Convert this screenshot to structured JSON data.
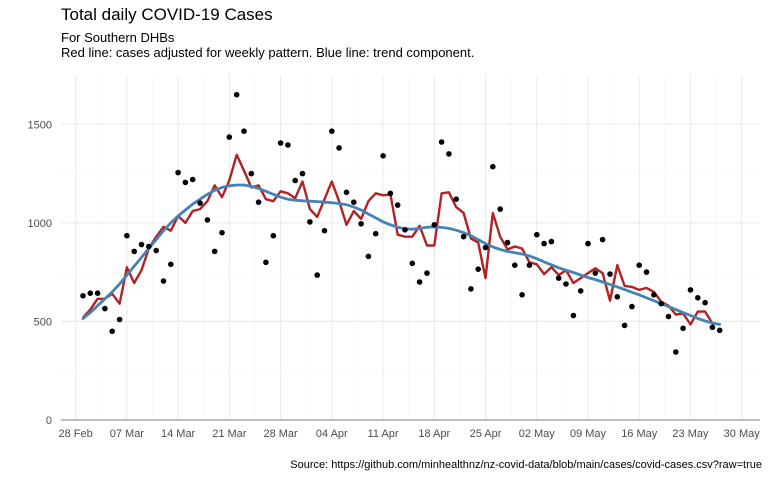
{
  "chart_data": {
    "type": "scatter",
    "title": "Total daily COVID-19 Cases",
    "subtitle_lines": [
      "For Southern DHBs",
      "Red line: cases adjusted for weekly pattern. Blue line: trend component."
    ],
    "caption": "Source: https://github.com/minhealthnz/nz-covid-data/blob/main/cases/covid-cases.csv?raw=true",
    "xlabel": "",
    "ylabel": "",
    "x_range_days": [
      -2,
      93.5
    ],
    "ylim": [
      0,
      1750
    ],
    "y_ticks": [
      0,
      500,
      1000,
      1500
    ],
    "x_ticks": [
      {
        "day": 0,
        "label": "28 Feb"
      },
      {
        "day": 7,
        "label": "07 Mar"
      },
      {
        "day": 14,
        "label": "14 Mar"
      },
      {
        "day": 21,
        "label": "21 Mar"
      },
      {
        "day": 28,
        "label": "28 Mar"
      },
      {
        "day": 35,
        "label": "04 Apr"
      },
      {
        "day": 42,
        "label": "11 Apr"
      },
      {
        "day": 49,
        "label": "18 Apr"
      },
      {
        "day": 56,
        "label": "25 Apr"
      },
      {
        "day": 63,
        "label": "02 May"
      },
      {
        "day": 70,
        "label": "09 May"
      },
      {
        "day": 77,
        "label": "16 May"
      },
      {
        "day": 84,
        "label": "23 May"
      },
      {
        "day": 91,
        "label": "30 May"
      }
    ],
    "grid": true,
    "legend": "none",
    "colors": {
      "points": "#000000",
      "adjusted": "#b22222",
      "trend": "#4682b4",
      "grid": "#ebebeb",
      "zero_line": "#7f7f7f"
    },
    "series": [
      {
        "kind": "points",
        "start_day": 1,
        "values": [
          630,
          643,
          643,
          565,
          450,
          510,
          935,
          855,
          890,
          880,
          860,
          705,
          790,
          1255,
          1205,
          1220,
          1100,
          1015,
          855,
          950,
          1435,
          1650,
          1465,
          1250,
          1105,
          800,
          935,
          1405,
          1395,
          1215,
          1250,
          1005,
          735,
          960,
          1465,
          1380,
          1155,
          1105,
          995,
          830,
          945,
          1340,
          1150,
          1090,
          965,
          795,
          700,
          745,
          990,
          1410,
          1350,
          1120,
          930,
          665,
          765,
          875,
          1285,
          1070,
          900,
          785,
          635,
          785,
          940,
          895,
          905,
          720,
          690,
          530,
          655,
          895,
          745,
          915,
          740,
          625,
          480,
          575,
          785,
          750,
          635,
          590,
          525,
          345,
          465,
          660,
          620,
          595,
          470,
          455
        ]
      },
      {
        "kind": "line",
        "start_day": 1,
        "values": [
          520,
          560,
          615,
          615,
          640,
          590,
          775,
          695,
          760,
          870,
          930,
          980,
          960,
          1035,
          1000,
          1060,
          1070,
          1110,
          1190,
          1130,
          1215,
          1345,
          1265,
          1180,
          1190,
          1120,
          1110,
          1160,
          1150,
          1125,
          1210,
          1070,
          1030,
          1120,
          1210,
          1110,
          990,
          1060,
          1020,
          1110,
          1150,
          1140,
          1145,
          940,
          930,
          930,
          985,
          885,
          885,
          1150,
          1155,
          1080,
          1050,
          920,
          900,
          720,
          1050,
          930,
          865,
          880,
          870,
          800,
          790,
          740,
          775,
          735,
          760,
          695,
          720,
          745,
          770,
          745,
          605,
          785,
          680,
          675,
          660,
          670,
          650,
          600,
          580,
          535,
          540,
          485,
          550,
          550,
          490,
          485
        ]
      },
      {
        "kind": "line",
        "start_day": 1,
        "values": [
          515,
          545,
          580,
          615,
          650,
          690,
          735,
          780,
          825,
          870,
          915,
          960,
          1000,
          1035,
          1065,
          1095,
          1120,
          1145,
          1165,
          1180,
          1188,
          1192,
          1192,
          1185,
          1175,
          1160,
          1145,
          1130,
          1120,
          1115,
          1112,
          1110,
          1108,
          1105,
          1102,
          1098,
          1092,
          1080,
          1065,
          1045,
          1025,
          1005,
          990,
          978,
          970,
          968,
          972,
          978,
          980,
          977,
          972,
          963,
          950,
          935,
          915,
          895,
          878,
          865,
          855,
          848,
          842,
          832,
          818,
          802,
          787,
          772,
          760,
          748,
          735,
          723,
          712,
          700,
          688,
          675,
          662,
          648,
          635,
          620,
          605,
          590,
          575,
          560,
          545,
          530,
          515,
          502,
          492,
          485
        ]
      }
    ]
  }
}
